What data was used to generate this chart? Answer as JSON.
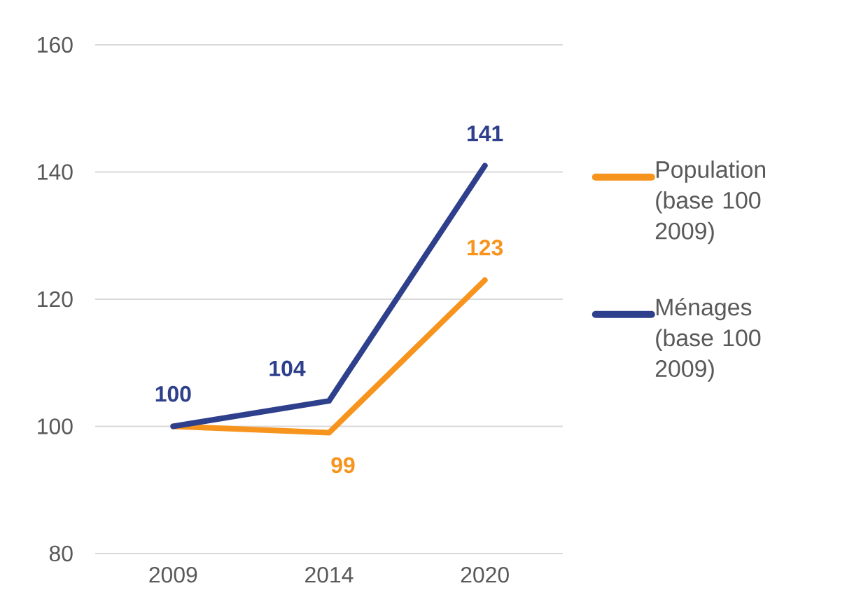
{
  "chart_data": {
    "type": "line",
    "categories": [
      "2009",
      "2014",
      "2020"
    ],
    "series": [
      {
        "name": "Population (base 100 2009)",
        "color": "#f7941d",
        "values": [
          100,
          99,
          123
        ],
        "value_labels": [
          null,
          "99",
          "123"
        ]
      },
      {
        "name": "Ménages (base 100 2009)",
        "color": "#2e3f8c",
        "values": [
          100,
          104,
          141
        ],
        "value_labels": [
          "100",
          "104",
          "141"
        ]
      }
    ],
    "ylim": [
      80,
      160
    ],
    "yticks": [
      80,
      100,
      120,
      140,
      160
    ],
    "grid": "y",
    "legend": "right",
    "marker": "none",
    "line_style": "solid"
  }
}
